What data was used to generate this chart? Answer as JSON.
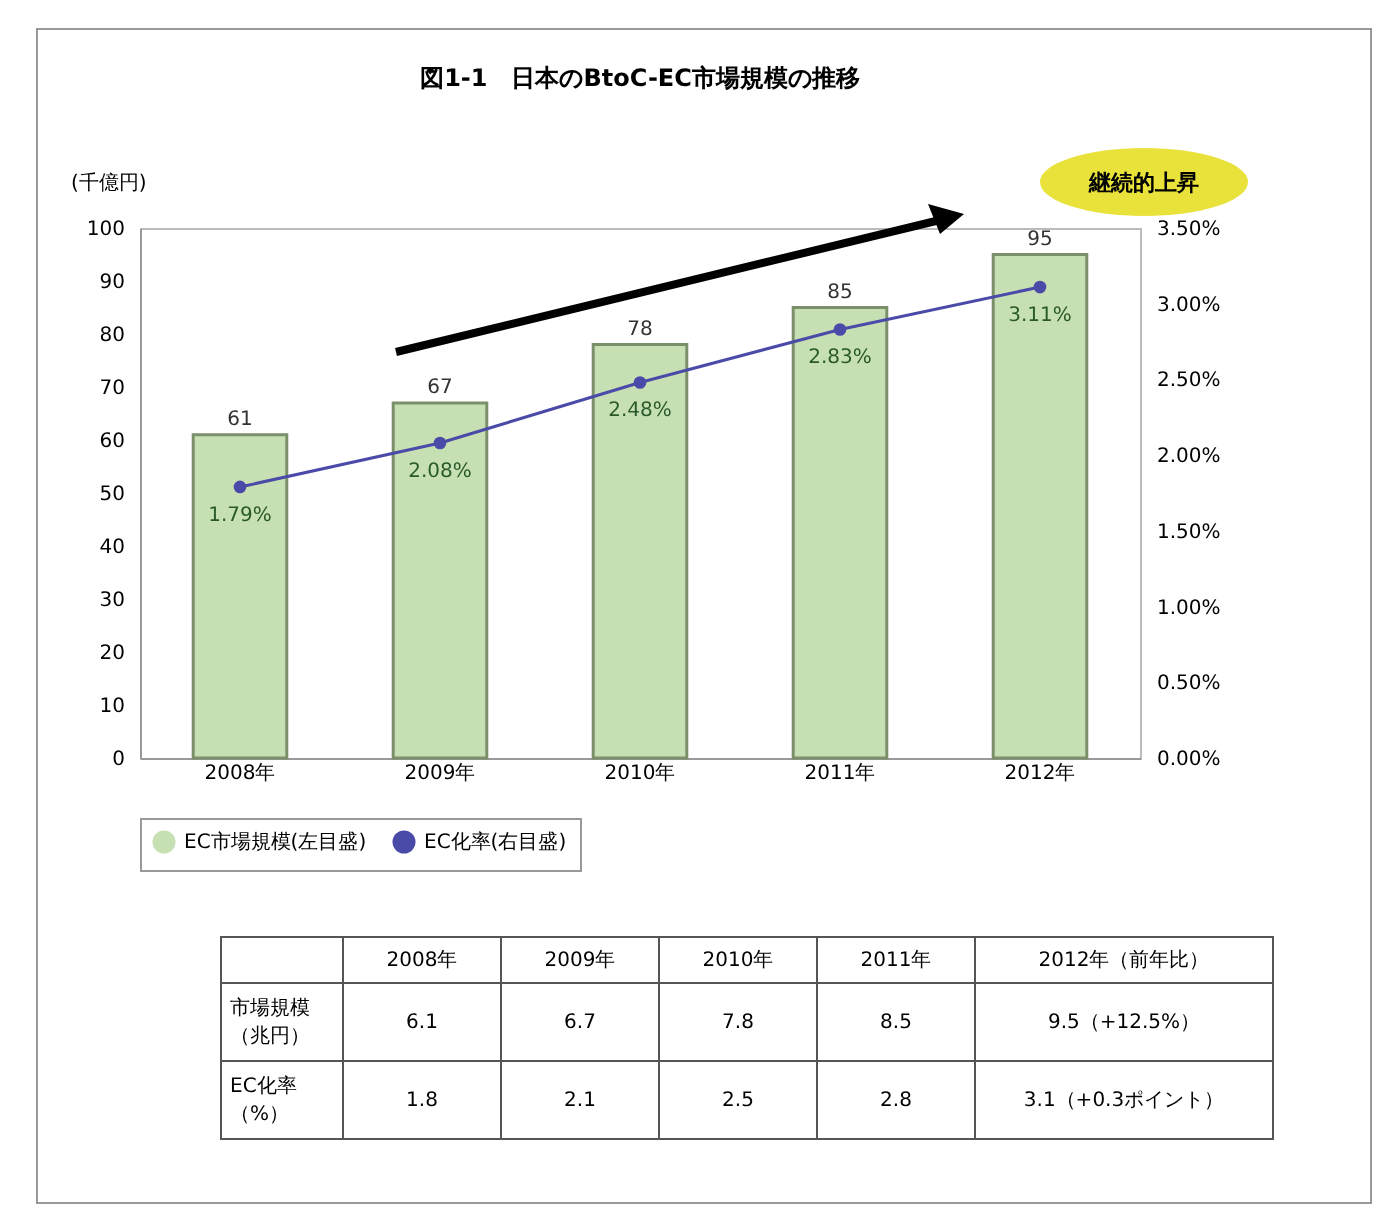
{
  "chart_data": {
    "type": "bar",
    "title": "図1-1　日本のBtoC-EC市場規模の推移",
    "ylabel": "(千億円)",
    "categories": [
      "2008年",
      "2009年",
      "2010年",
      "2011年",
      "2012年"
    ],
    "series": [
      {
        "name": "EC市場規模(左目盛)",
        "type": "bar",
        "color": "#c6e0b4",
        "values": [
          61,
          67,
          78,
          85,
          95
        ],
        "value_labels": [
          "61",
          "67",
          "78",
          "85",
          "95"
        ]
      },
      {
        "name": "EC化率(右目盛)",
        "type": "line",
        "axis": "y2",
        "color": "#4a4aa8",
        "values": [
          1.79,
          2.08,
          2.48,
          2.83,
          3.11
        ],
        "value_labels": [
          "1.79%",
          "2.08%",
          "2.48%",
          "2.83%",
          "3.11%"
        ]
      }
    ],
    "ylim": [
      0,
      100
    ],
    "yticks": [
      0,
      10,
      20,
      30,
      40,
      50,
      60,
      70,
      80,
      90,
      100
    ],
    "y2lim": [
      0,
      3.5
    ],
    "y2ticks": [
      {
        "value": 0,
        "label": "0.00%"
      },
      {
        "value": 0.5,
        "label": "0.50%"
      },
      {
        "value": 1,
        "label": "1.00%"
      },
      {
        "value": 1.5,
        "label": "1.50%"
      },
      {
        "value": 2,
        "label": "2.00%"
      },
      {
        "value": 2.5,
        "label": "2.50%"
      },
      {
        "value": 3,
        "label": "3.00%"
      },
      {
        "value": 3.5,
        "label": "3.50%"
      }
    ],
    "legend": "bottom",
    "grid": false,
    "marker": "circle",
    "annotations": [
      "継続的上昇",
      "2008年",
      "2009年",
      "2010年",
      "2011年",
      "2012年（前年比）",
      "市場規模（兆円）",
      "6.1",
      "6.7",
      "7.8",
      "8.5",
      "9.5（+12.5%）",
      "EC化率（%）",
      "1.8",
      "2.1",
      "2.5",
      "2.8",
      "3.1（+0.3ポイント）"
    ]
  }
}
